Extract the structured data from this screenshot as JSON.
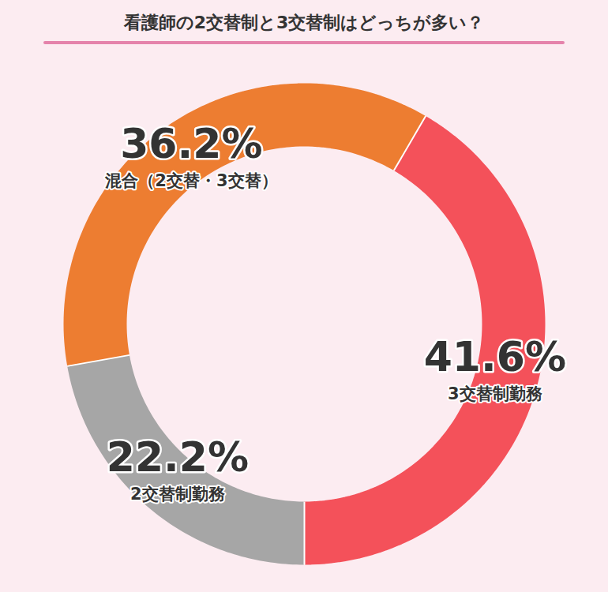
{
  "chart_data": {
    "type": "donut",
    "title": "看護師の2交替制と3交替制はどっちが多い？",
    "categories": [
      "3交替制勤務",
      "混合（2交替・3交替）",
      "2交替制勤務"
    ],
    "values": [
      41.6,
      36.2,
      22.2
    ],
    "value_labels": [
      "41.6%",
      "36.2%",
      "22.2%"
    ],
    "colors": [
      "#f4515a",
      "#ed7d31",
      "#a6a6a6"
    ],
    "data_labels": true
  }
}
